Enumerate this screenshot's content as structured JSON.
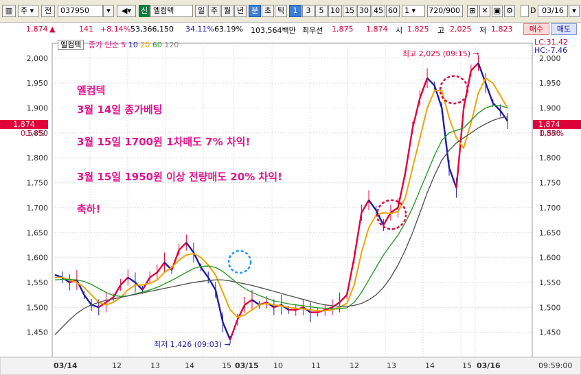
{
  "toolbar": {
    "type_label": "주",
    "prev_label": "전",
    "code": "037950",
    "market_tag": "신",
    "stock_name": "엘컴텍",
    "period_tabs": [
      "일",
      "주",
      "월",
      "년",
      "분",
      "초",
      "틱"
    ],
    "interval_buttons": [
      "1",
      "3",
      "5",
      "10",
      "15",
      "30",
      "45",
      "60"
    ],
    "multiplier": "1",
    "count_display": "720/900",
    "date_value": "03/16",
    "date_prefix": "D"
  },
  "quote": {
    "price": "1,874",
    "arrow": "▲",
    "change": "141",
    "change_pct": "+8.14%",
    "volume": "53,366,150",
    "turnover_pct": "34.11%",
    "vol_ratio": "63.19%",
    "amount": "103,564백만",
    "priority_label": "최우선",
    "ask": "1,875",
    "bid": "1,874",
    "open_label": "시",
    "open": "1,825",
    "high_label": "고",
    "high": "2,025",
    "low_label": "저",
    "low": "1,823",
    "buy_label": "매수",
    "sell_label": "매도"
  },
  "legend": {
    "name": "엘컴텍",
    "ma_label": "종가 단순 5",
    "ma10": "10",
    "ma20": "20",
    "ma60": "60",
    "ma120": "120"
  },
  "right_info": {
    "lc": "LC:31.42",
    "hc": "HC:-7.46"
  },
  "price_tag": {
    "price": "1,874",
    "pct": "0.54%"
  },
  "annotations": {
    "high_note": "최고 2,025 (09:15)",
    "low_note": "최저 1,426 (09:03)",
    "note_lines": [
      "엘컴텍",
      "3월 14일 종가베팅",
      "3월 15일 1700원 1차매도 7% 차익!",
      "3월 15일 1950원 이상 전량매도 20% 차익!",
      "축하!"
    ]
  },
  "time_label": "09:59:00",
  "colors": {
    "up": "#e0003a",
    "down": "#1a1aa8",
    "ma5": "#f0a400",
    "ma20": "#2a9a2a",
    "ma60": "#555555",
    "note": "#e0168c"
  },
  "chart_data": {
    "type": "line",
    "title": "",
    "ylim": [
      1400,
      2030
    ],
    "y_ticks": [
      1450,
      1500,
      1550,
      1600,
      1650,
      1700,
      1750,
      1800,
      1850,
      1900,
      1950,
      2000
    ],
    "x_labels": [
      "03/14",
      "12",
      "13",
      "14",
      "15",
      "03/15",
      "10",
      "11",
      "12",
      "13",
      "14",
      "15",
      "03/16"
    ],
    "series": [
      {
        "name": "종가",
        "values": [
          1565,
          1560,
          1550,
          1555,
          1525,
          1505,
          1500,
          1510,
          1520,
          1545,
          1560,
          1550,
          1535,
          1560,
          1570,
          1590,
          1575,
          1615,
          1630,
          1610,
          1580,
          1560,
          1535,
          1470,
          1435,
          1475,
          1505,
          1515,
          1505,
          1510,
          1500,
          1505,
          1495,
          1495,
          1500,
          1490,
          1490,
          1495,
          1500,
          1510,
          1525,
          1600,
          1690,
          1715,
          1695,
          1665,
          1690,
          1700,
          1770,
          1860,
          1920,
          1960,
          1945,
          1900,
          1780,
          1740,
          1900,
          1975,
          1990,
          1950,
          1910,
          1895,
          1874
        ]
      },
      {
        "name": "5",
        "values": [
          1560,
          1560,
          1555,
          1550,
          1540,
          1525,
          1510,
          1505,
          1510,
          1520,
          1535,
          1545,
          1545,
          1548,
          1555,
          1570,
          1580,
          1595,
          1605,
          1608,
          1600,
          1585,
          1565,
          1530,
          1495,
          1480,
          1485,
          1495,
          1505,
          1508,
          1505,
          1503,
          1500,
          1498,
          1497,
          1495,
          1493,
          1493,
          1495,
          1500,
          1508,
          1545,
          1610,
          1660,
          1685,
          1690,
          1688,
          1692,
          1720,
          1780,
          1840,
          1900,
          1935,
          1935,
          1880,
          1840,
          1820,
          1870,
          1930,
          1960,
          1950,
          1925,
          1900
        ]
      },
      {
        "name": "20",
        "values": [
          1555,
          1556,
          1556,
          1555,
          1552,
          1546,
          1538,
          1530,
          1524,
          1522,
          1523,
          1527,
          1531,
          1535,
          1540,
          1547,
          1554,
          1562,
          1570,
          1578,
          1582,
          1583,
          1580,
          1572,
          1560,
          1548,
          1538,
          1530,
          1524,
          1518,
          1513,
          1510,
          1507,
          1505,
          1503,
          1501,
          1499,
          1498,
          1497,
          1497,
          1499,
          1510,
          1530,
          1555,
          1580,
          1605,
          1625,
          1645,
          1670,
          1700,
          1735,
          1770,
          1805,
          1835,
          1850,
          1855,
          1860,
          1875,
          1890,
          1900,
          1905,
          1905,
          1900
        ]
      },
      {
        "name": "60",
        "values": [
          1445,
          1460,
          1475,
          1488,
          1498,
          1505,
          1510,
          1514,
          1517,
          1520,
          1523,
          1526,
          1529,
          1532,
          1535,
          1538,
          1541,
          1544,
          1547,
          1550,
          1552,
          1554,
          1555,
          1555,
          1553,
          1550,
          1547,
          1544,
          1540,
          1536,
          1532,
          1528,
          1524,
          1520,
          1516,
          1512,
          1508,
          1505,
          1503,
          1502,
          1502,
          1504,
          1508,
          1515,
          1525,
          1540,
          1560,
          1585,
          1615,
          1650,
          1690,
          1730,
          1765,
          1795,
          1815,
          1830,
          1840,
          1850,
          1860,
          1868,
          1875,
          1880,
          1882
        ]
      }
    ]
  }
}
